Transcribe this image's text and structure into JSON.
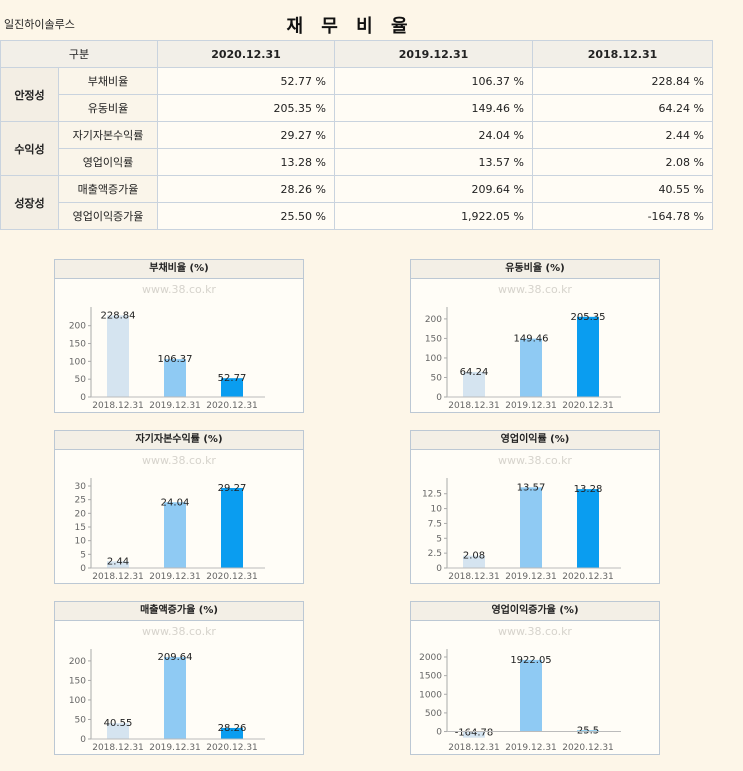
{
  "company": "일진하이솔루스",
  "title": "재 무 비 율",
  "table": {
    "header": [
      "구분",
      "2020.12.31",
      "2019.12.31",
      "2018.12.31"
    ],
    "groups": [
      {
        "name": "안정성",
        "rows": [
          {
            "label": "부채비율",
            "values": [
              "52.77 %",
              "106.37 %",
              "228.84 %"
            ]
          },
          {
            "label": "유동비율",
            "values": [
              "205.35 %",
              "149.46 %",
              "64.24 %"
            ]
          }
        ]
      },
      {
        "name": "수익성",
        "rows": [
          {
            "label": "자기자본수익률",
            "values": [
              "29.27 %",
              "24.04 %",
              "2.44 %"
            ]
          },
          {
            "label": "영업이익률",
            "values": [
              "13.28 %",
              "13.57 %",
              "2.08 %"
            ]
          }
        ]
      },
      {
        "name": "성장성",
        "rows": [
          {
            "label": "매출액증가율",
            "values": [
              "28.26 %",
              "209.64 %",
              "40.55 %"
            ]
          },
          {
            "label": "영업이익증가율",
            "values": [
              "25.50 %",
              "1,922.05 %",
              "-164.78 %"
            ]
          }
        ]
      }
    ]
  },
  "chart_data": [
    {
      "type": "bar",
      "title": "부채비율 (%)",
      "watermark": "www.38.co.kr",
      "categories": [
        "2018.12.31",
        "2019.12.31",
        "2020.12.31"
      ],
      "values": [
        228.84,
        106.37,
        52.77
      ],
      "labels": [
        "228.84",
        "106.37",
        "52.77"
      ],
      "yticks": [
        0,
        50,
        100,
        150,
        200
      ],
      "ylim": [
        0,
        230
      ],
      "colors": [
        "#d5e4f0",
        "#8fcaf3",
        "#0a9df0"
      ]
    },
    {
      "type": "bar",
      "title": "유동비율 (%)",
      "watermark": "www.38.co.kr",
      "categories": [
        "2018.12.31",
        "2019.12.31",
        "2020.12.31"
      ],
      "values": [
        64.24,
        149.46,
        205.35
      ],
      "labels": [
        "64.24",
        "149.46",
        "205.35"
      ],
      "yticks": [
        0,
        50,
        100,
        150,
        200
      ],
      "ylim": [
        0,
        210
      ],
      "colors": [
        "#d5e4f0",
        "#8fcaf3",
        "#0a9df0"
      ]
    },
    {
      "type": "bar",
      "title": "자기자본수익률 (%)",
      "watermark": "www.38.co.kr",
      "categories": [
        "2018.12.31",
        "2019.12.31",
        "2020.12.31"
      ],
      "values": [
        2.44,
        24.04,
        29.27
      ],
      "labels": [
        "2.44",
        "24.04",
        "29.27"
      ],
      "yticks": [
        0,
        5,
        10,
        15,
        20,
        25,
        30
      ],
      "ylim": [
        0,
        30
      ],
      "colors": [
        "#d5e4f0",
        "#8fcaf3",
        "#0a9df0"
      ]
    },
    {
      "type": "bar",
      "title": "영업이익률 (%)",
      "watermark": "www.38.co.kr",
      "categories": [
        "2018.12.31",
        "2019.12.31",
        "2020.12.31"
      ],
      "values": [
        2.08,
        13.57,
        13.28
      ],
      "labels": [
        "2.08",
        "13.57",
        "13.28"
      ],
      "yticks": [
        0,
        2.5,
        5,
        7.5,
        10,
        12.5
      ],
      "ylim": [
        0,
        13.8
      ],
      "colors": [
        "#d5e4f0",
        "#8fcaf3",
        "#0a9df0"
      ]
    },
    {
      "type": "bar",
      "title": "매출액증가율 (%)",
      "watermark": "www.38.co.kr",
      "categories": [
        "2018.12.31",
        "2019.12.31",
        "2020.12.31"
      ],
      "values": [
        40.55,
        209.64,
        28.26
      ],
      "labels": [
        "40.55",
        "209.64",
        "28.26"
      ],
      "yticks": [
        0,
        50,
        100,
        150,
        200
      ],
      "ylim": [
        0,
        210
      ],
      "colors": [
        "#d5e4f0",
        "#8fcaf3",
        "#0a9df0"
      ]
    },
    {
      "type": "bar",
      "title": "영업이익증가율 (%)",
      "watermark": "www.38.co.kr",
      "categories": [
        "2018.12.31",
        "2019.12.31",
        "2020.12.31"
      ],
      "values": [
        -164.78,
        1922.05,
        25.5
      ],
      "labels": [
        "-164.78",
        "1922.05",
        "25.5"
      ],
      "yticks": [
        0,
        500,
        1000,
        1500,
        2000
      ],
      "ylim": [
        -200,
        2000
      ],
      "colors": [
        "#d5e4f0",
        "#8fcaf3",
        "#0a9df0"
      ]
    }
  ]
}
